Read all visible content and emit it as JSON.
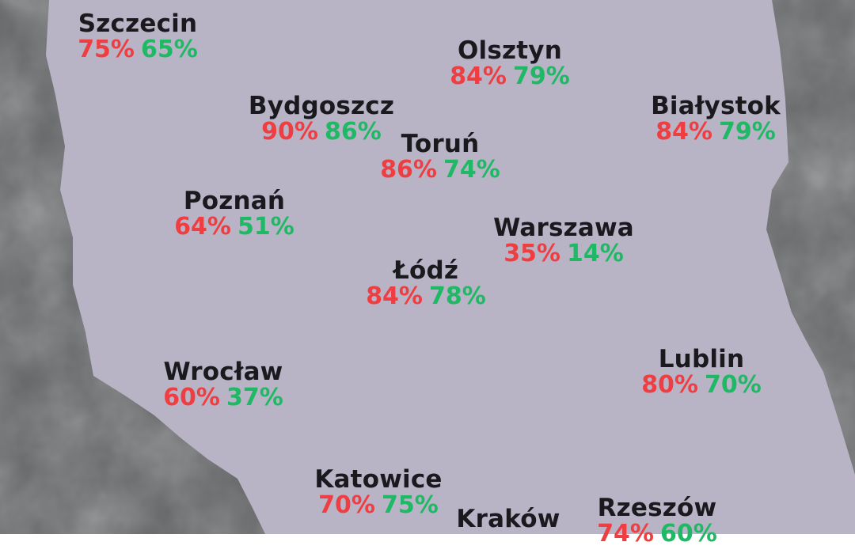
{
  "colors": {
    "background": "#5f6163",
    "land": "#b8b4c6",
    "city_name": "#1a1a1e",
    "first_value": "#ef3e42",
    "second_value": "#1fb864"
  },
  "cities": [
    {
      "name": "Szczecin",
      "red": "75%",
      "green": "65%"
    },
    {
      "name": "Olsztyn",
      "red": "84%",
      "green": "79%"
    },
    {
      "name": "Bydgoszcz",
      "red": "90%",
      "green": "86%"
    },
    {
      "name": "Białystok",
      "red": "84%",
      "green": "79%"
    },
    {
      "name": "Toruń",
      "red": "86%",
      "green": "74%"
    },
    {
      "name": "Poznań",
      "red": "64%",
      "green": "51%"
    },
    {
      "name": "Warszawa",
      "red": "35%",
      "green": "14%"
    },
    {
      "name": "Łódź",
      "red": "84%",
      "green": "78%"
    },
    {
      "name": "Wrocław",
      "red": "60%",
      "green": "37%"
    },
    {
      "name": "Lublin",
      "red": "80%",
      "green": "70%"
    },
    {
      "name": "Katowice",
      "red": "70%",
      "green": "75%"
    },
    {
      "name": "Kraków",
      "red": "",
      "green": ""
    },
    {
      "name": "Rzeszów",
      "red": "74%",
      "green": "60%"
    }
  ]
}
